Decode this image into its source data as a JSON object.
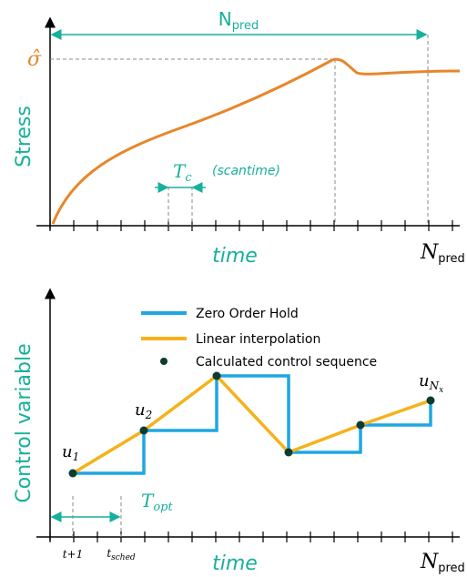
{
  "top_plot": {
    "horizon_label": {
      "base": "N",
      "sub": "pred"
    },
    "y_marker": "σ̂",
    "y_label": "Stress",
    "scan_label": {
      "base": "T",
      "sub": "c"
    },
    "scan_note": "(scantime)",
    "x_label": "time",
    "x_end_label": {
      "base": "N",
      "sub": "pred"
    }
  },
  "bottom_plot": {
    "legend": [
      "Zero Order Hold",
      "Linear interpolation",
      "Calculated control sequence"
    ],
    "y_label": "Control variable",
    "points": [
      {
        "base": "u",
        "sub": "1"
      },
      {
        "base": "u",
        "sub": "2"
      },
      {
        "base": "u",
        "sub": "N",
        "subsub": "x"
      }
    ],
    "opt_label": {
      "base": "T",
      "sub": "opt"
    },
    "start_tick": "t+1",
    "sched_tick": {
      "base": "t",
      "sub": "sched"
    },
    "x_label": "time",
    "x_end_label": {
      "base": "N",
      "sub": "pred"
    }
  }
}
